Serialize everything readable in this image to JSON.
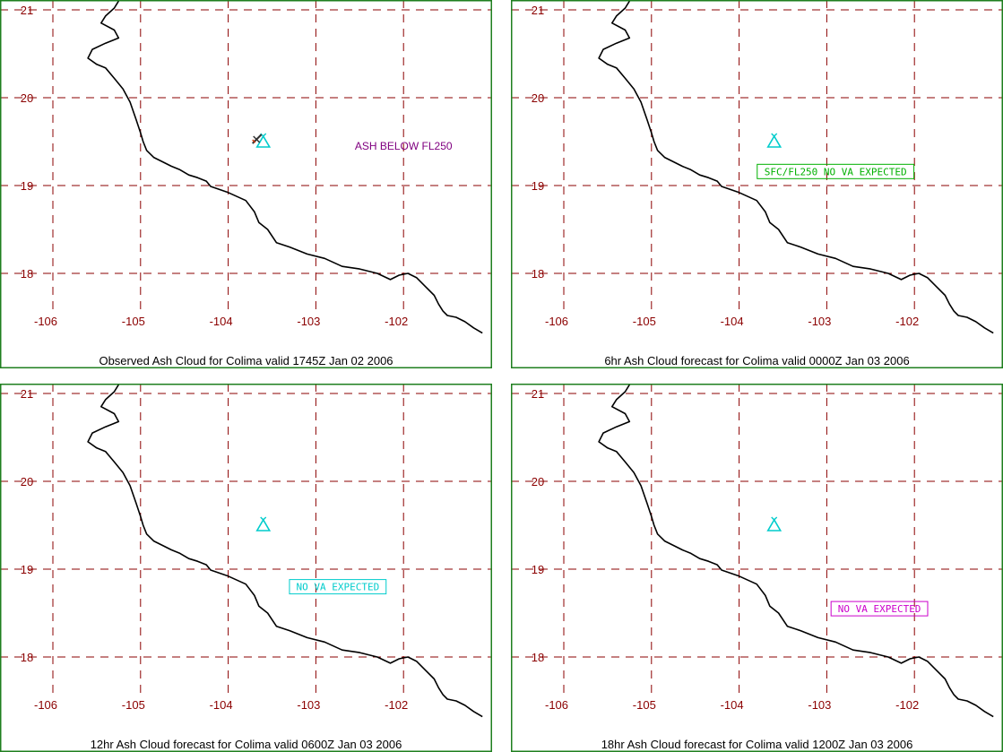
{
  "colors": {
    "grid": "#8b0000",
    "frame": "#1f7f1f",
    "coastline": "#000000",
    "volcano": "#00cccc"
  },
  "icons": [
    "volcano-icon",
    "aircraft-icon"
  ],
  "axes": {
    "lon_ticks": [
      -106,
      -105,
      -104,
      -103,
      -102
    ],
    "lat_ticks": [
      21,
      20,
      19,
      18
    ],
    "lon_range": [
      -106.4,
      -101.1
    ],
    "lat_range": [
      17.0,
      21.1
    ]
  },
  "volcano": {
    "name": "Colima",
    "lon": -103.6,
    "lat": 19.5
  },
  "panels": [
    {
      "caption": "Observed Ash Cloud for Colima valid 1745Z Jan 02 2006",
      "label": "ASH BELOW FL250",
      "label_color": "#800080",
      "label_boxed": false,
      "label_lon": -102.0,
      "label_lat": 19.45,
      "show_aircraft": true
    },
    {
      "caption": "6hr Ash Cloud forecast for Colima valid 0000Z Jan 03 2006",
      "label": "SFC/FL250 NO VA EXPECTED",
      "label_color": "#00b000",
      "label_boxed": true,
      "label_lon": -102.9,
      "label_lat": 19.16,
      "show_aircraft": false
    },
    {
      "caption": "12hr Ash Cloud forecast for Colima valid 0600Z Jan 03 2006",
      "label": "NO VA EXPECTED",
      "label_color": "#00cccc",
      "label_boxed": true,
      "label_lon": -102.75,
      "label_lat": 18.8,
      "show_aircraft": false
    },
    {
      "caption": "18hr Ash Cloud forecast for Colima valid 1200Z Jan 03 2006",
      "label": "NO VA EXPECTED",
      "label_color": "#cc00cc",
      "label_boxed": true,
      "label_lon": -102.4,
      "label_lat": 18.55,
      "show_aircraft": false
    }
  ],
  "coastline": [
    [
      -105.25,
      21.1
    ],
    [
      -105.3,
      21.02
    ],
    [
      -105.4,
      20.93
    ],
    [
      -105.45,
      20.85
    ],
    [
      -105.3,
      20.77
    ],
    [
      -105.25,
      20.68
    ],
    [
      -105.4,
      20.62
    ],
    [
      -105.55,
      20.55
    ],
    [
      -105.6,
      20.45
    ],
    [
      -105.5,
      20.38
    ],
    [
      -105.4,
      20.34
    ],
    [
      -105.3,
      20.22
    ],
    [
      -105.2,
      20.1
    ],
    [
      -105.12,
      19.95
    ],
    [
      -105.05,
      19.75
    ],
    [
      -105.0,
      19.6
    ],
    [
      -104.97,
      19.5
    ],
    [
      -104.93,
      19.4
    ],
    [
      -104.85,
      19.32
    ],
    [
      -104.75,
      19.27
    ],
    [
      -104.65,
      19.22
    ],
    [
      -104.55,
      19.18
    ],
    [
      -104.45,
      19.12
    ],
    [
      -104.35,
      19.09
    ],
    [
      -104.25,
      19.05
    ],
    [
      -104.2,
      18.99
    ],
    [
      -104.0,
      18.92
    ],
    [
      -103.8,
      18.83
    ],
    [
      -103.7,
      18.7
    ],
    [
      -103.65,
      18.58
    ],
    [
      -103.55,
      18.5
    ],
    [
      -103.45,
      18.35
    ],
    [
      -103.3,
      18.3
    ],
    [
      -103.1,
      18.22
    ],
    [
      -102.9,
      18.17
    ],
    [
      -102.7,
      18.08
    ],
    [
      -102.5,
      18.05
    ],
    [
      -102.3,
      18.0
    ],
    [
      -102.15,
      17.93
    ],
    [
      -102.05,
      17.98
    ],
    [
      -101.95,
      18.0
    ],
    [
      -101.85,
      17.95
    ],
    [
      -101.75,
      17.85
    ],
    [
      -101.65,
      17.75
    ],
    [
      -101.6,
      17.65
    ],
    [
      -101.55,
      17.57
    ],
    [
      -101.5,
      17.52
    ],
    [
      -101.4,
      17.5
    ],
    [
      -101.3,
      17.45
    ],
    [
      -101.2,
      17.38
    ],
    [
      -101.1,
      17.32
    ]
  ]
}
